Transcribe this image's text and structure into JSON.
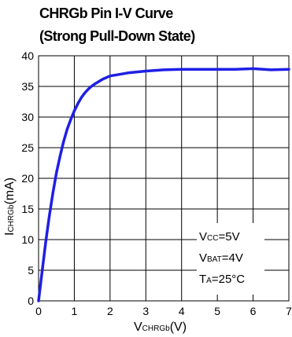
{
  "chart_data": {
    "type": "line",
    "title_line1": "CHRGb Pin I-V Curve",
    "title_line2": "(Strong Pull-Down State)",
    "xlabel": {
      "main": "V",
      "sub": "CHRGb",
      "unit": "(V)"
    },
    "ylabel": {
      "main": "I",
      "sub": "CHRGb",
      "unit": "(mA)"
    },
    "xlim": [
      0,
      7
    ],
    "ylim": [
      0,
      40
    ],
    "x_ticks": [
      "0",
      "1",
      "2",
      "3",
      "4",
      "5",
      "6",
      "7"
    ],
    "y_ticks": [
      "0",
      "5",
      "10",
      "15",
      "20",
      "25",
      "30",
      "35",
      "40"
    ],
    "grid": true,
    "series": [
      {
        "color": "#1f1fe6",
        "x": [
          0,
          0.1,
          0.2,
          0.3,
          0.4,
          0.5,
          0.6,
          0.7,
          0.8,
          0.9,
          1.0,
          1.1,
          1.2,
          1.3,
          1.4,
          1.5,
          1.6,
          1.8,
          2.0,
          2.2,
          2.5,
          3.0,
          3.5,
          4.0,
          4.5,
          5.0,
          5.5,
          6.0,
          6.5,
          7.0
        ],
        "y": [
          0,
          4.8,
          9.6,
          13.8,
          17.6,
          20.9,
          23.6,
          26.0,
          28.0,
          29.6,
          31.0,
          32.2,
          33.2,
          34.0,
          34.6,
          35.1,
          35.5,
          36.2,
          36.7,
          36.9,
          37.2,
          37.5,
          37.7,
          37.8,
          37.8,
          37.8,
          37.8,
          37.9,
          37.7,
          37.8
        ]
      }
    ],
    "annotations": [
      {
        "main": "V",
        "sub": "CC",
        "rest": "=5V"
      },
      {
        "main": "V",
        "sub": "BAT",
        "rest": "=4V"
      },
      {
        "main": "T",
        "sub": "A",
        "rest": "=25°C"
      }
    ]
  }
}
